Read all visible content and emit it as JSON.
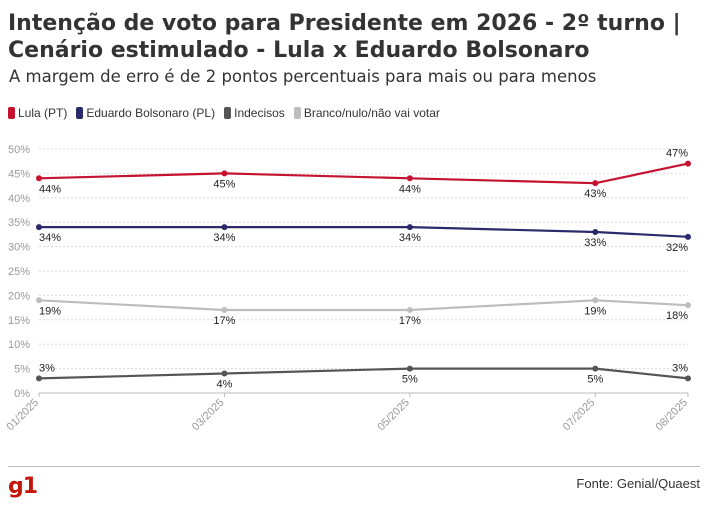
{
  "header": {
    "title": "Intenção de voto para Presidente em 2026 - 2º turno | Cenário estimulado - Lula x Eduardo Bolsonaro",
    "subtitle": "A margem de erro é de 2 pontos percentuais para mais ou para menos"
  },
  "footer": {
    "logo": "g1",
    "source": "Fonte: Genial/Quaest"
  },
  "chart_data": {
    "type": "line",
    "x": [
      "01/2025",
      "03/2025",
      "05/2025",
      "07/2025",
      "08/2025"
    ],
    "x_positions_months": [
      0,
      2,
      4,
      6,
      7
    ],
    "ylim": [
      0,
      50
    ],
    "yticks": [
      "0%",
      "5%",
      "10%",
      "15%",
      "20%",
      "25%",
      "30%",
      "35%",
      "40%",
      "45%",
      "50%"
    ],
    "grid": true,
    "legend_position": "top-left",
    "series": [
      {
        "name": "Lula (PT)",
        "color": "#c4122f",
        "values": [
          44,
          45,
          44,
          43,
          47
        ],
        "labels": [
          "44%",
          "45%",
          "44%",
          "43%",
          "47%"
        ]
      },
      {
        "name": "Eduardo Bolsonaro (PL)",
        "color": "#2b2b6b",
        "values": [
          34,
          34,
          34,
          33,
          32
        ],
        "labels": [
          "34%",
          "34%",
          "34%",
          "33%",
          "32%"
        ]
      },
      {
        "name": "Indecisos",
        "color": "#555555",
        "values": [
          3,
          4,
          5,
          5,
          3
        ],
        "labels": [
          "3%",
          "4%",
          "5%",
          "5%",
          "3%"
        ]
      },
      {
        "name": "Branco/nulo/não vai votar",
        "color": "#bdbdbd",
        "values": [
          19,
          17,
          17,
          19,
          18
        ],
        "labels": [
          "19%",
          "17%",
          "17%",
          "19%",
          "18%"
        ]
      }
    ]
  }
}
